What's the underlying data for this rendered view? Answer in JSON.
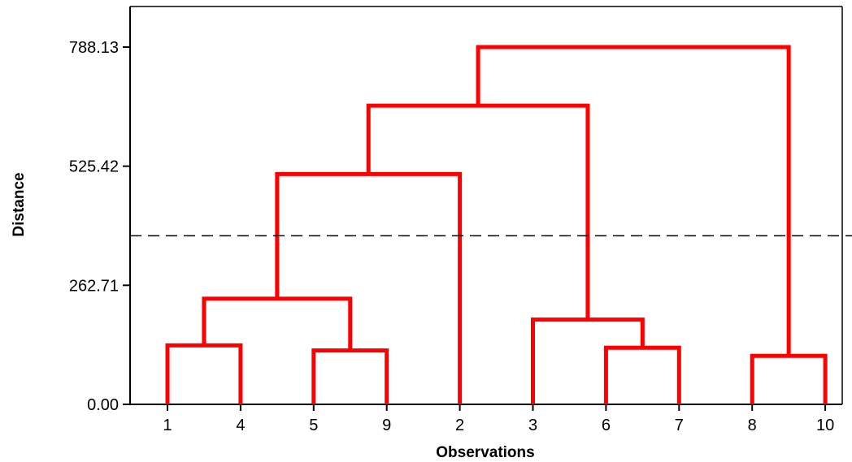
{
  "chart_data": {
    "type": "dendrogram",
    "xlabel": "Observations",
    "ylabel": "Distance",
    "ylim": [
      0,
      788.13
    ],
    "y_ticks": [
      {
        "value": 0,
        "label": "0.00"
      },
      {
        "value": 262.71,
        "label": "262.71"
      },
      {
        "value": 525.42,
        "label": "525.42"
      },
      {
        "value": 788.13,
        "label": "788.13"
      }
    ],
    "leaf_order": [
      "1",
      "4",
      "5",
      "9",
      "2",
      "3",
      "6",
      "7",
      "8",
      "10"
    ],
    "merges": [
      {
        "id": "A",
        "children": [
          "1",
          "4"
        ],
        "height": 130
      },
      {
        "id": "B",
        "children": [
          "5",
          "9"
        ],
        "height": 119
      },
      {
        "id": "C",
        "children": [
          "A",
          "B"
        ],
        "height": 233
      },
      {
        "id": "D",
        "children": [
          "C",
          "2"
        ],
        "height": 508
      },
      {
        "id": "E",
        "children": [
          "6",
          "7"
        ],
        "height": 125
      },
      {
        "id": "F",
        "children": [
          "3",
          "E"
        ],
        "height": 187
      },
      {
        "id": "G",
        "children": [
          "D",
          "F"
        ],
        "height": 659
      },
      {
        "id": "H",
        "children": [
          "8",
          "10"
        ],
        "height": 107
      },
      {
        "id": "I",
        "children": [
          "G",
          "H"
        ],
        "height": 788.13
      }
    ],
    "cut_line": 372,
    "colors": {
      "links": "#ff0000",
      "cut_line": "#000000",
      "axes": "#000000"
    },
    "grid": false
  }
}
